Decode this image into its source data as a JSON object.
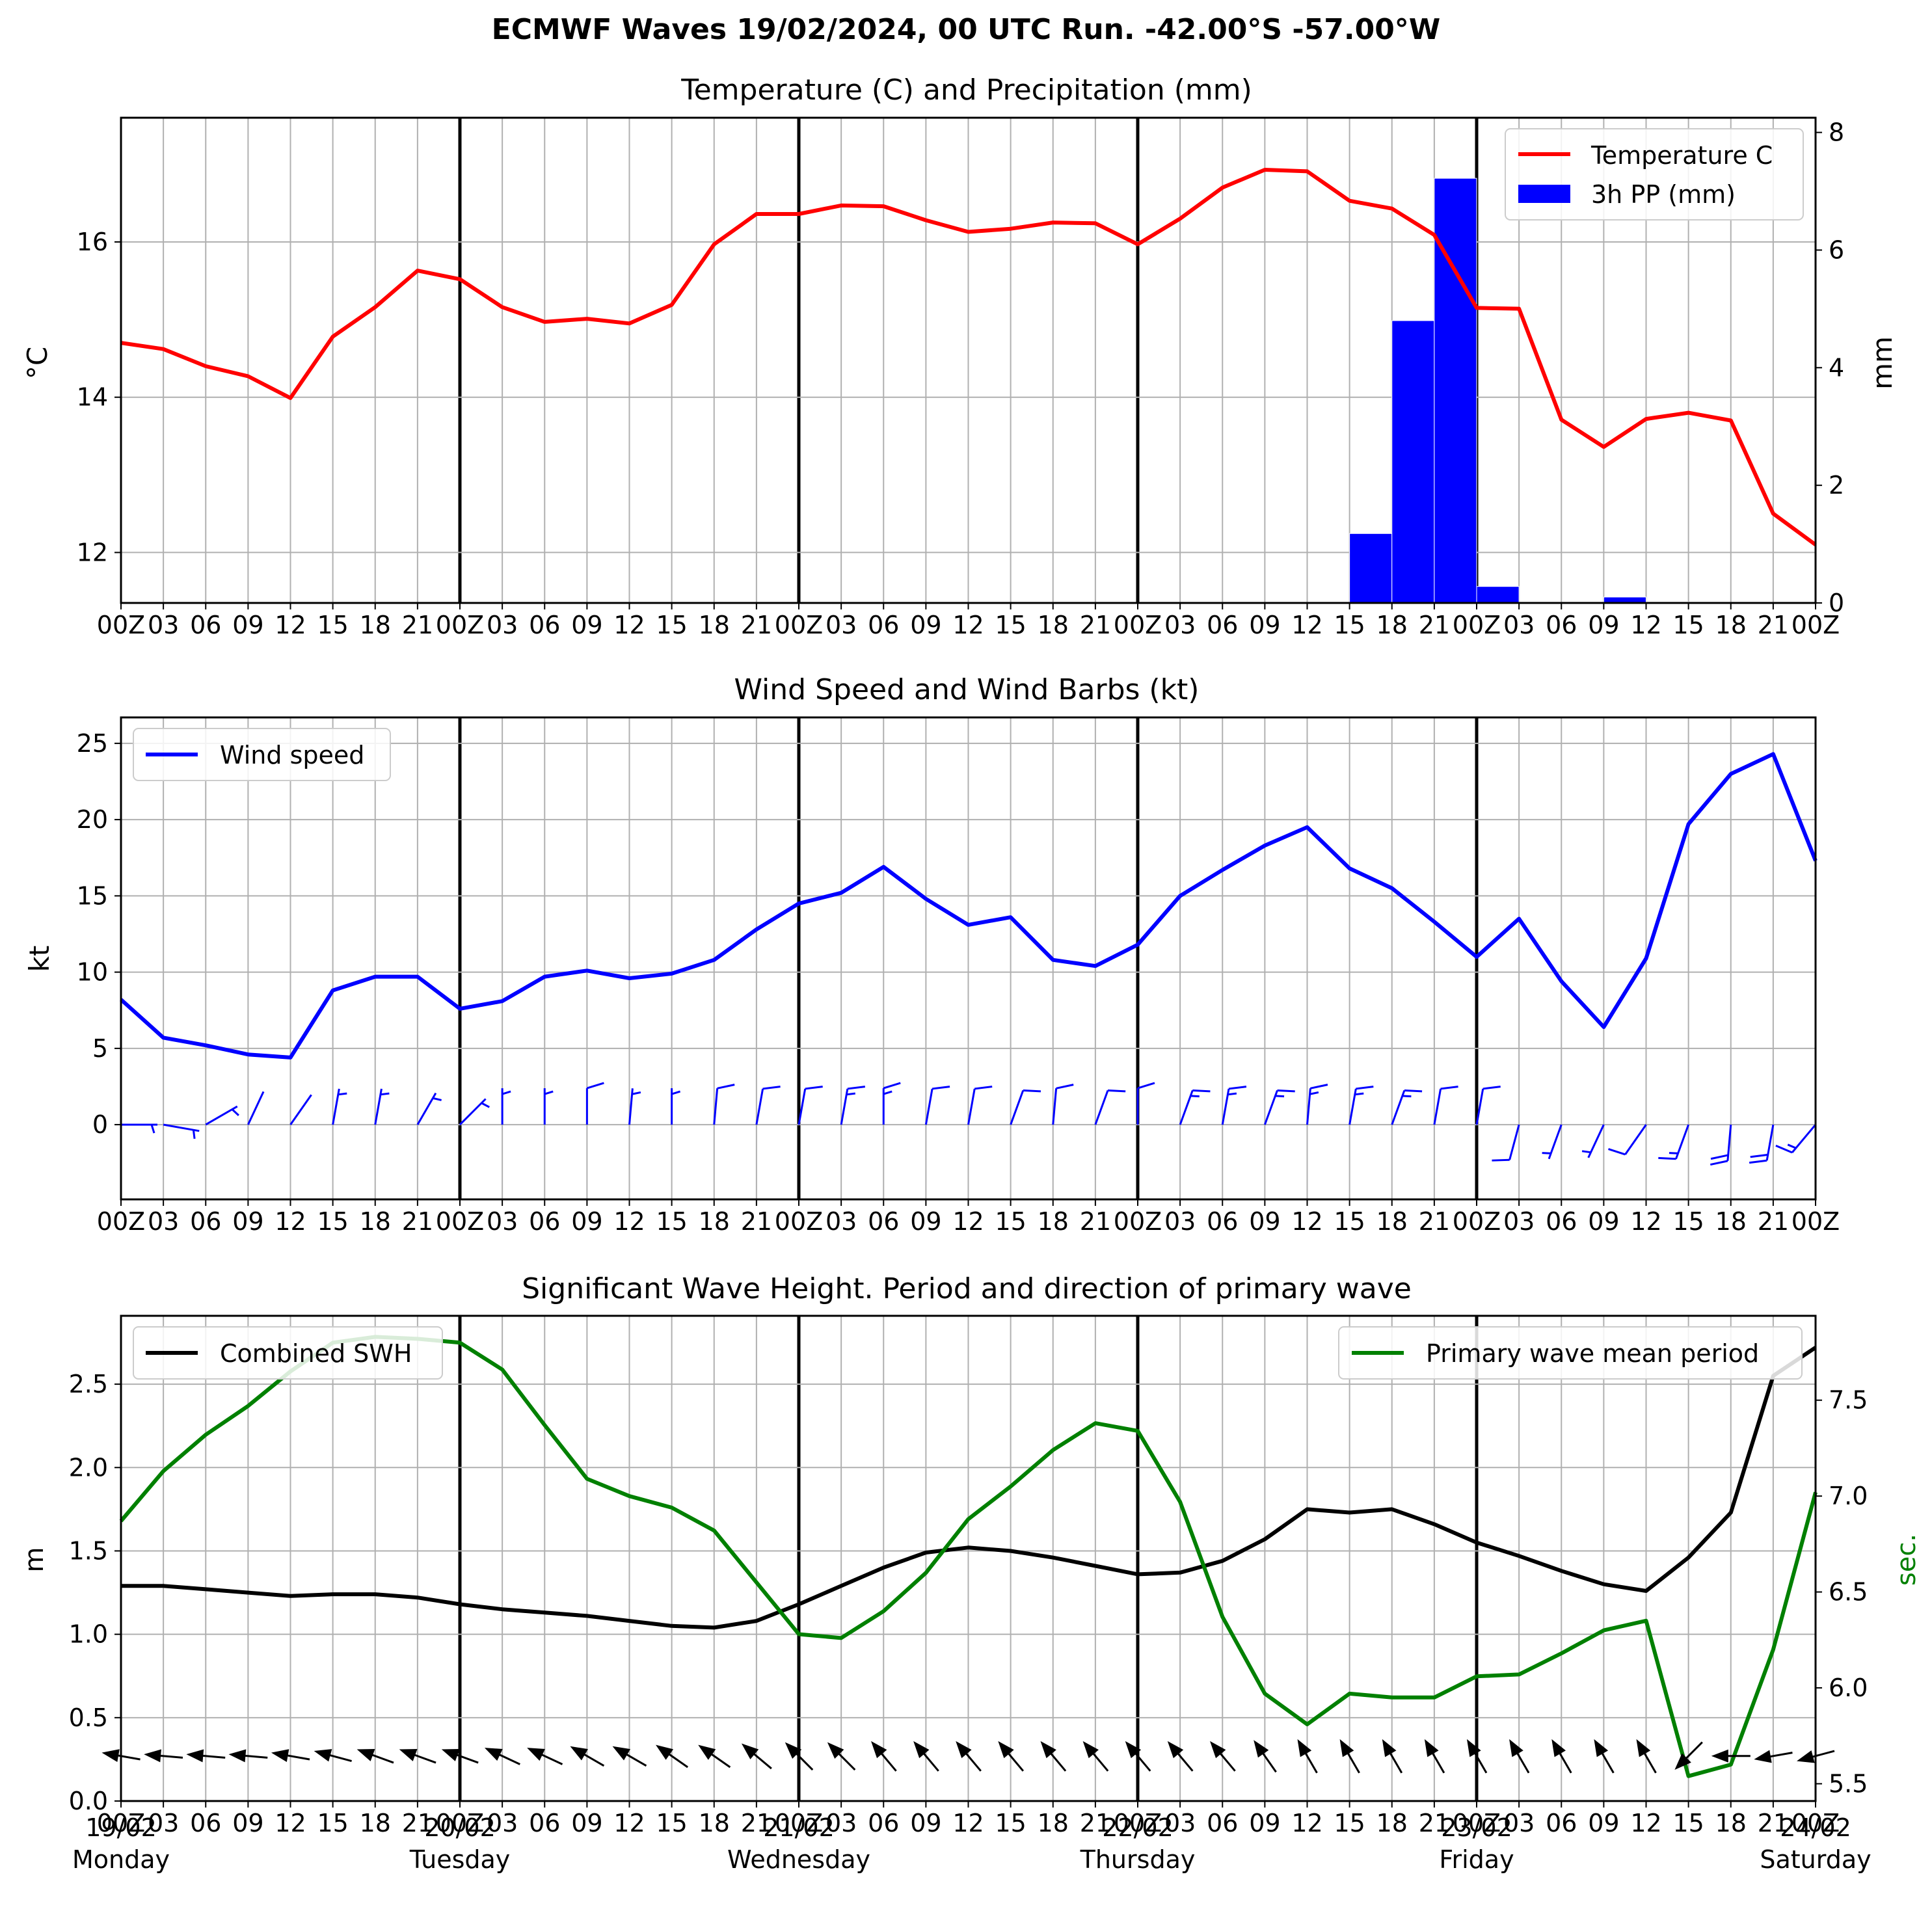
{
  "suptitle": "ECMWF Waves 19/02/2024, 00 UTC Run. -42.00°S -57.00°W",
  "hour_labels": [
    "00Z",
    "03",
    "06",
    "09",
    "12",
    "15",
    "18",
    "21",
    "00Z",
    "03",
    "06",
    "09",
    "12",
    "15",
    "18",
    "21",
    "00Z",
    "03",
    "06",
    "09",
    "12",
    "15",
    "18",
    "21",
    "00Z",
    "03",
    "06",
    "09",
    "12",
    "15",
    "18",
    "21",
    "00Z",
    "03",
    "06",
    "09",
    "12",
    "15",
    "18",
    "21",
    "00Z"
  ],
  "day_labels": [
    {
      "date": "19/02",
      "weekday": "Monday"
    },
    {
      "date": "20/02",
      "weekday": "Tuesday"
    },
    {
      "date": "21/02",
      "weekday": "Wednesday"
    },
    {
      "date": "22/02",
      "weekday": "Thursday"
    },
    {
      "date": "23/02",
      "weekday": "Friday"
    },
    {
      "date": "24/02",
      "weekday": "Saturday"
    }
  ],
  "colors": {
    "temperature": "#ff0000",
    "precip": "#0000ff",
    "wind": "#0000ff",
    "swh": "#000000",
    "period": "#008000",
    "grid": "#b0b0b0",
    "day_line": "#000000"
  },
  "chart_data": [
    {
      "type": "line",
      "title": "Temperature (C) and Precipitation (mm)",
      "xlabel": "",
      "ylabel": "$^\\circ$C",
      "ylabel_right": "mm",
      "legend_position": "upper right",
      "grid": true,
      "ylim": [
        11.35,
        17.6
      ],
      "yticks": [
        12,
        14,
        16
      ],
      "ylim_right": [
        0,
        8.25
      ],
      "yticks_right": [
        0,
        2,
        4,
        6,
        8
      ],
      "series": [
        {
          "name": "Temperature C",
          "axis": "left",
          "kind": "line",
          "values": [
            14.7,
            14.62,
            14.4,
            14.27,
            13.99,
            14.78,
            15.16,
            15.63,
            15.52,
            15.16,
            14.97,
            15.01,
            14.95,
            15.19,
            15.97,
            16.36,
            16.36,
            16.47,
            16.46,
            16.28,
            16.13,
            16.17,
            16.25,
            16.24,
            15.97,
            16.3,
            16.7,
            16.93,
            16.91,
            16.53,
            16.43,
            16.09,
            15.15,
            15.14,
            13.71,
            13.36,
            13.72,
            13.8,
            13.7,
            12.5,
            12.1
          ]
        },
        {
          "name": "3h PP (mm)",
          "axis": "right",
          "kind": "bar",
          "values": [
            0,
            0,
            0,
            0,
            0,
            0,
            0,
            0,
            0,
            0,
            0,
            0,
            0,
            0,
            0,
            0,
            0,
            0,
            0,
            0,
            0,
            0,
            0,
            0,
            0,
            0,
            0,
            0,
            0,
            1.18,
            4.8,
            7.22,
            0.28,
            0,
            0,
            0.1,
            0.02,
            0,
            0,
            0
          ]
        }
      ]
    },
    {
      "type": "line",
      "title": "Wind Speed and Wind Barbs (kt)",
      "xlabel": "",
      "ylabel": "kt",
      "legend_position": "upper left",
      "grid": true,
      "ylim": [
        -4.9,
        26.7
      ],
      "yticks": [
        0,
        5,
        10,
        15,
        20,
        25
      ],
      "series": [
        {
          "name": "Wind speed",
          "values": [
            8.2,
            5.7,
            5.2,
            4.6,
            4.4,
            8.8,
            9.7,
            9.7,
            7.6,
            8.1,
            9.7,
            10.1,
            9.6,
            9.9,
            10.8,
            12.8,
            14.5,
            15.2,
            16.9,
            14.8,
            13.1,
            13.6,
            10.8,
            10.4,
            11.8,
            15.0,
            16.7,
            18.3,
            19.5,
            16.8,
            15.5,
            13.3,
            11.0,
            13.5,
            9.4,
            6.4,
            10.9,
            19.7,
            23.0,
            24.3,
            17.3
          ]
        }
      ],
      "barbs": {
        "direction_deg": [
          90,
          100,
          60,
          25,
          35,
          10,
          10,
          30,
          45,
          0,
          0,
          0,
          5,
          0,
          5,
          10,
          10,
          10,
          0,
          10,
          10,
          20,
          5,
          20,
          0,
          20,
          10,
          20,
          5,
          10,
          20,
          10,
          10,
          195,
          200,
          205,
          215,
          200,
          185,
          190,
          220
        ],
        "speed_kt": [
          8.2,
          5.7,
          5.2,
          4.6,
          4.4,
          8.8,
          9.7,
          9.7,
          7.6,
          8.1,
          9.7,
          10.1,
          9.6,
          9.9,
          10.8,
          12.8,
          14.5,
          15.2,
          16.9,
          14.8,
          13.1,
          13.6,
          10.8,
          10.4,
          11.8,
          15.0,
          16.7,
          18.3,
          19.5,
          16.8,
          15.5,
          13.3,
          11.0,
          13.5,
          9.4,
          6.4,
          10.9,
          19.7,
          23.0,
          24.3,
          17.3
        ]
      }
    },
    {
      "type": "line",
      "title": "Significant Wave Height. Period and direction of primary wave",
      "xlabel": "",
      "ylabel": "m",
      "ylabel_right": "sec.",
      "legend_position": "upper left / upper right",
      "grid": true,
      "ylim": [
        0,
        2.91
      ],
      "yticks": [
        0.0,
        0.5,
        1.0,
        1.5,
        2.0,
        2.5
      ],
      "ylim_right": [
        5.41,
        7.94
      ],
      "yticks_right": [
        5.5,
        6.0,
        6.5,
        7.0,
        7.5
      ],
      "series": [
        {
          "name": "Combined SWH",
          "axis": "left",
          "values": [
            1.29,
            1.29,
            1.27,
            1.25,
            1.23,
            1.24,
            1.24,
            1.22,
            1.18,
            1.15,
            1.13,
            1.11,
            1.08,
            1.05,
            1.04,
            1.08,
            1.18,
            1.29,
            1.4,
            1.49,
            1.52,
            1.5,
            1.46,
            1.41,
            1.36,
            1.37,
            1.44,
            1.57,
            1.75,
            1.73,
            1.75,
            1.66,
            1.55,
            1.47,
            1.38,
            1.3,
            1.26,
            1.46,
            1.73,
            2.55,
            2.72
          ]
        },
        {
          "name": "Primary wave mean period",
          "axis": "right",
          "values": [
            6.87,
            7.13,
            7.32,
            7.47,
            7.65,
            7.8,
            7.83,
            7.82,
            7.8,
            7.66,
            7.37,
            7.09,
            7.0,
            6.94,
            6.82,
            6.55,
            6.28,
            6.26,
            6.4,
            6.6,
            6.88,
            7.05,
            7.24,
            7.38,
            7.34,
            6.97,
            6.37,
            5.97,
            5.81,
            5.97,
            5.95,
            5.95,
            6.06,
            6.07,
            6.18,
            6.3,
            6.35,
            5.54,
            5.6,
            6.2,
            7.02
          ]
        }
      ],
      "arrows": {
        "direction_deg": [
          100,
          95,
          95,
          95,
          100,
          105,
          110,
          110,
          110,
          115,
          115,
          120,
          120,
          125,
          125,
          130,
          135,
          135,
          140,
          140,
          140,
          140,
          140,
          140,
          140,
          140,
          140,
          145,
          150,
          150,
          150,
          150,
          150,
          150,
          150,
          150,
          150,
          45,
          90,
          80,
          75
        ]
      }
    }
  ]
}
